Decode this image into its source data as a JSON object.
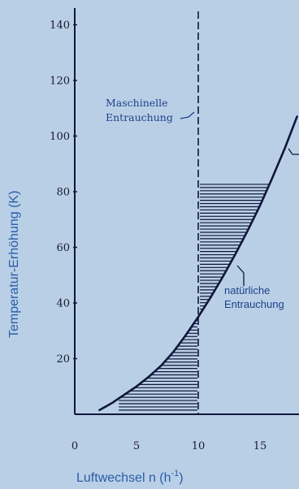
{
  "chart_data": {
    "type": "line",
    "xlabel": "Luftwechsel n (h",
    "xlabel_sup": "-1",
    "xlabel_close": ")",
    "ylabel": "Temperatur-Erhöhung (K)",
    "x_ticks": [
      0,
      5,
      10,
      15
    ],
    "y_ticks": [
      20,
      40,
      60,
      80,
      100,
      120,
      140
    ],
    "xlim": [
      0,
      18
    ],
    "ylim": [
      0,
      145
    ],
    "series": [
      {
        "x": [
          2,
          3,
          4,
          5,
          6,
          7,
          8,
          9,
          10,
          11,
          12,
          13,
          14,
          15,
          16,
          17,
          18
        ],
        "values": [
          1.5,
          4,
          7,
          10,
          13.5,
          17.5,
          22.5,
          28.5,
          35,
          42,
          49.5,
          57.5,
          66,
          75,
          85,
          95.5,
          107
        ]
      }
    ],
    "vertical_line": {
      "x": 10
    },
    "hatched_regions": [
      {
        "x_from": 3.5,
        "x_to": 10,
        "y_top_from_curve": true
      },
      {
        "x_from": 10,
        "x_to": 15.8,
        "y_top": 83
      }
    ],
    "annotations": {
      "maschinelle_line1": "Maschinelle",
      "maschinelle_line2": "Entrauchung",
      "natuerliche_line1": "natürliche",
      "natuerliche_line2": "Entrauchung"
    }
  },
  "colors": {
    "background": "#b9cfe6",
    "ink": "#10163a",
    "annotation": "#1f3f8a",
    "axis_label": "#2a5da8"
  }
}
